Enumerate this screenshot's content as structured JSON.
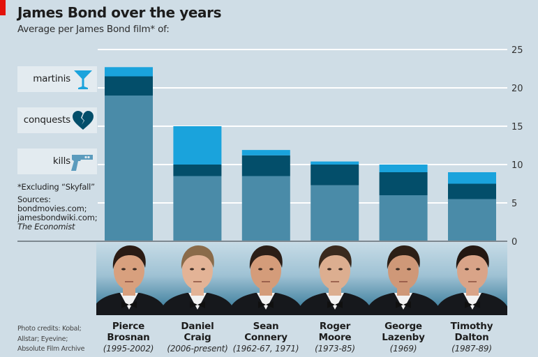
{
  "header": {
    "title": "James Bond over the years",
    "subtitle": "Average per James Bond film* of:"
  },
  "legend": [
    {
      "label": "martinis",
      "icon": "martini-glass-icon",
      "color": "#1aa3dc"
    },
    {
      "label": "conquests",
      "icon": "broken-heart-icon",
      "color": "#034e6a"
    },
    {
      "label": "kills",
      "icon": "pistol-icon",
      "color": "#4a8ba8"
    }
  ],
  "notes": {
    "footnote": "*Excluding “Skyfall”",
    "sources_label": "Sources:",
    "sources": [
      "bondmovies.com;",
      "jamesbondwiki.com;"
    ],
    "sources_italic": "The Economist"
  },
  "credits": [
    "Photo credits: Kobal;",
    "Allstar; Eyevine;",
    "Absolute Film Archive"
  ],
  "actors": [
    {
      "first": "Pierce",
      "last": "Brosnan",
      "years": "(1995-2002)"
    },
    {
      "first": "Daniel",
      "last": "Craig",
      "years": "(2006-present)"
    },
    {
      "first": "Sean",
      "last": "Connery",
      "years": "(1962-67, 1971)"
    },
    {
      "first": "Roger",
      "last": "Moore",
      "years": "(1973-85)"
    },
    {
      "first": "George",
      "last": "Lazenby",
      "years": "(1969)"
    },
    {
      "first": "Timothy",
      "last": "Dalton",
      "years": "(1987-89)"
    }
  ],
  "colors": {
    "martinis": "#1aa3dc",
    "conquests": "#034e6a",
    "kills": "#4a8ba8",
    "background": "#cfdde6",
    "accent": "#e3120b"
  },
  "chart_data": {
    "type": "bar",
    "stacked": true,
    "title": "James Bond over the years",
    "subtitle": "Average per James Bond film* of:",
    "xlabel": "",
    "ylabel": "",
    "categories": [
      "Pierce Brosnan",
      "Daniel Craig",
      "Sean Connery",
      "Roger Moore",
      "George Lazenby",
      "Timothy Dalton"
    ],
    "series": [
      {
        "name": "kills",
        "values": [
          19.0,
          8.5,
          8.5,
          7.3,
          6.0,
          5.5
        ]
      },
      {
        "name": "conquests",
        "values": [
          2.5,
          1.5,
          2.7,
          2.7,
          3.0,
          2.0
        ]
      },
      {
        "name": "martinis",
        "values": [
          1.2,
          5.0,
          0.7,
          0.4,
          1.0,
          1.5
        ]
      }
    ],
    "ylim": [
      0,
      25
    ],
    "yticks": [
      0,
      5,
      10,
      15,
      20,
      25
    ],
    "y_axis_side": "right",
    "grid": true,
    "legend_position": "left"
  }
}
